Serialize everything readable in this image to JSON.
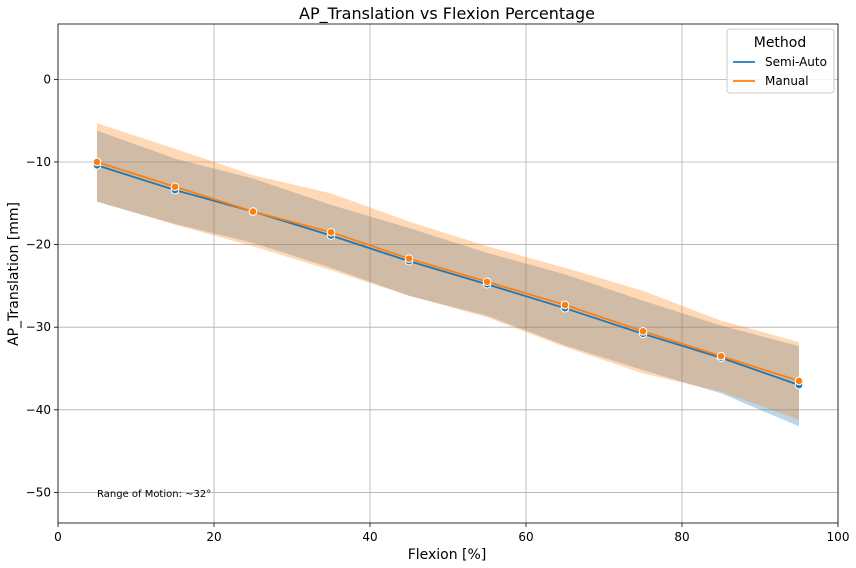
{
  "chart_data": {
    "type": "line",
    "title": "AP_Translation vs Flexion Percentage",
    "xlabel": "Flexion [%]",
    "ylabel": "AP_Translation [mm]",
    "xlim": [
      0,
      100
    ],
    "ylim": [
      -53.7,
      6.7
    ],
    "xticks": [
      0,
      20,
      40,
      60,
      80,
      100
    ],
    "yticks": [
      0,
      -10,
      -20,
      -30,
      -40,
      -50
    ],
    "grid": true,
    "legend": {
      "title": "Method",
      "position": "top-right"
    },
    "annotation": "Range of Motion: ~32°",
    "x": [
      5,
      15,
      25,
      35,
      45,
      55,
      65,
      75,
      85,
      95
    ],
    "series": [
      {
        "name": "Semi-Auto",
        "color": "#1f77b4",
        "values": [
          -10.4,
          -13.4,
          -16.0,
          -18.9,
          -22.0,
          -24.8,
          -27.7,
          -30.8,
          -33.7,
          -37.0
        ],
        "ci_upper": [
          -6.2,
          -9.6,
          -12.0,
          -15.2,
          -18.0,
          -21.0,
          -23.6,
          -26.8,
          -29.8,
          -32.3
        ],
        "ci_lower": [
          -14.8,
          -17.5,
          -19.8,
          -22.8,
          -26.2,
          -28.6,
          -32.2,
          -35.2,
          -38.0,
          -42.0
        ]
      },
      {
        "name": "Manual",
        "color": "#ff7f0e",
        "values": [
          -10.0,
          -13.0,
          -16.0,
          -18.5,
          -21.7,
          -24.5,
          -27.3,
          -30.5,
          -33.5,
          -36.5
        ],
        "ci_upper": [
          -5.3,
          -8.4,
          -11.6,
          -13.8,
          -17.2,
          -20.2,
          -22.8,
          -25.6,
          -29.2,
          -31.8
        ],
        "ci_lower": [
          -14.8,
          -17.6,
          -20.2,
          -23.1,
          -26.2,
          -28.8,
          -32.4,
          -35.6,
          -37.8,
          -41.2
        ]
      }
    ]
  }
}
